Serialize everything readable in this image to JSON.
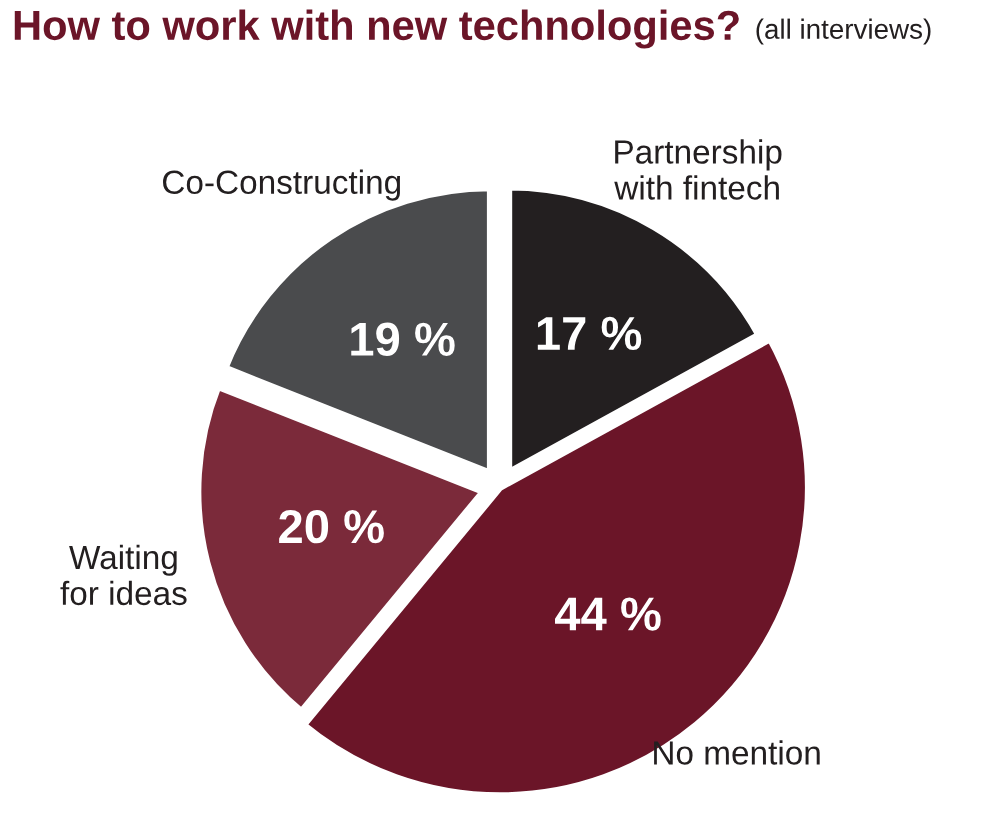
{
  "chart_data": {
    "type": "pie",
    "title": "How to work with new technologies?",
    "subtitle": "(all interviews)",
    "categories": [
      "Partnership\nwith fintech",
      "No mention",
      "Waiting\nfor ideas",
      "Co-Constructing"
    ],
    "values": [
      17,
      44,
      20,
      19
    ],
    "colors": [
      "#231f20",
      "#6b1528",
      "#7b2a3a",
      "#4a4b4d"
    ],
    "value_labels": [
      "17 %",
      "44 %",
      "20 %",
      "19 %"
    ],
    "legend": false
  }
}
